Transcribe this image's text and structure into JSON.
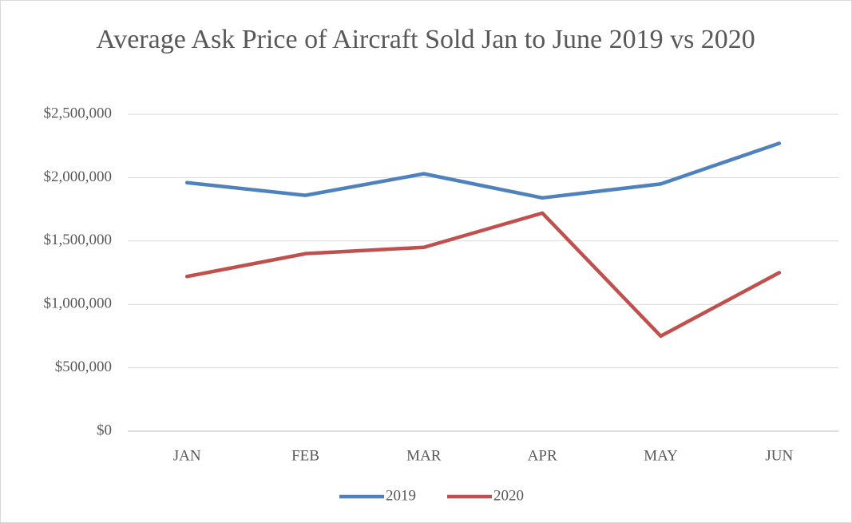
{
  "chart_data": {
    "type": "line",
    "title": "Average Ask Price of Aircraft Sold Jan to June 2019 vs 2020",
    "categories": [
      "JAN",
      "FEB",
      "MAR",
      "APR",
      "MAY",
      "JUN"
    ],
    "series": [
      {
        "name": "2019",
        "color": "#4f81bd",
        "values": [
          1960000,
          1860000,
          2030000,
          1840000,
          1950000,
          2270000
        ]
      },
      {
        "name": "2020",
        "color": "#c0504d",
        "values": [
          1220000,
          1400000,
          1450000,
          1720000,
          750000,
          1250000
        ]
      }
    ],
    "ylim": [
      0,
      2500000
    ],
    "yticks": [
      0,
      {
        "value": 500000,
        "label": "$500,000"
      },
      {
        "value": 1000000,
        "label": "$1,000,000"
      },
      {
        "value": 1500000,
        "label": "$1,500,000"
      },
      {
        "value": 2000000,
        "label": "$2,000,000"
      },
      {
        "value": 2500000,
        "label": "$2,500,000"
      }
    ],
    "yticks_zero_label": "$0",
    "grid": true,
    "legend": "bottom"
  }
}
